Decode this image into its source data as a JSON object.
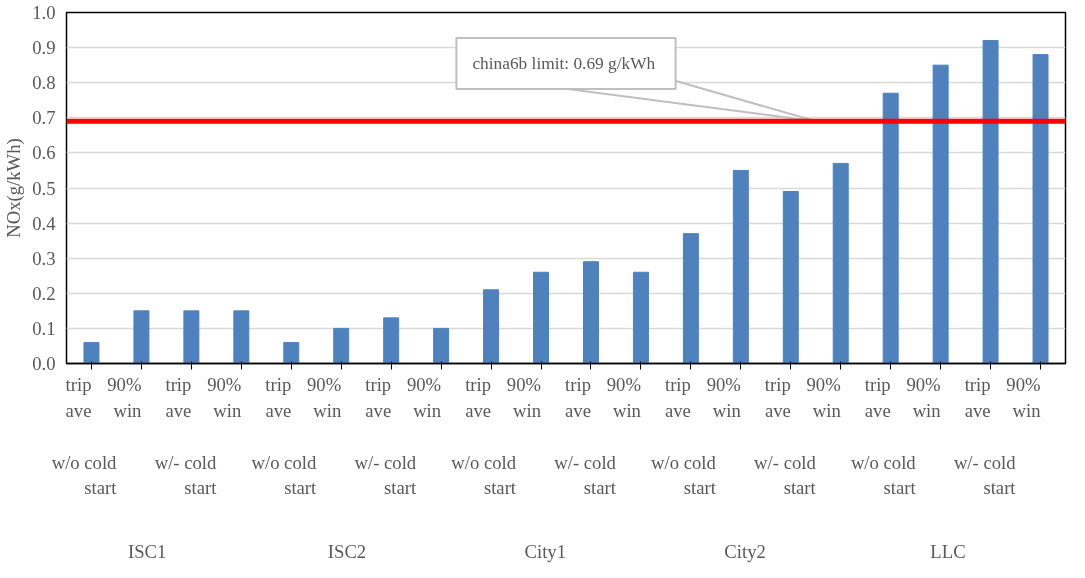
{
  "chart_data": {
    "type": "bar",
    "ylabel": "NOx(g/kWh)",
    "categories": [
      "trip ave",
      "90% win",
      "trip ave",
      "90% win",
      "trip ave",
      "90% win",
      "trip ave",
      "90% win",
      "trip ave",
      "90% win",
      "trip ave",
      "90% win",
      "trip ave",
      "90% win",
      "trip ave",
      "90% win",
      "trip ave",
      "90% win",
      "trip ave",
      "90% win"
    ],
    "annotations": [
      "w/o cold start",
      "w/- cold start",
      "w/o cold start",
      "w/- cold start",
      "w/o cold start",
      "w/- cold start",
      "w/o cold start",
      "w/- cold start",
      "w/o cold start",
      "w/- cold start",
      "ISC1",
      "ISC2",
      "City1",
      "City2",
      "LLC"
    ],
    "values": [
      0.06,
      0.15,
      0.15,
      0.15,
      0.06,
      0.1,
      0.13,
      0.1,
      0.21,
      0.26,
      0.29,
      0.26,
      0.37,
      0.55,
      0.49,
      0.57,
      0.77,
      0.85,
      0.92,
      0.88
    ],
    "color": "#4f81bd",
    "ylim": [
      0,
      1
    ],
    "yticks": [
      {
        "value": 0,
        "label": "0.0"
      },
      0.1,
      0.2,
      0.3,
      0.4,
      0.5,
      0.6,
      0.7,
      0.8,
      0.9,
      {
        "value": 1,
        "label": "1.0"
      }
    ],
    "grid": "y",
    "ref_lines": [
      {
        "axis": "y",
        "value": 0.69,
        "label": "china6b limit:  0.69 g/kWh",
        "color": "#ff0000"
      }
    ]
  }
}
